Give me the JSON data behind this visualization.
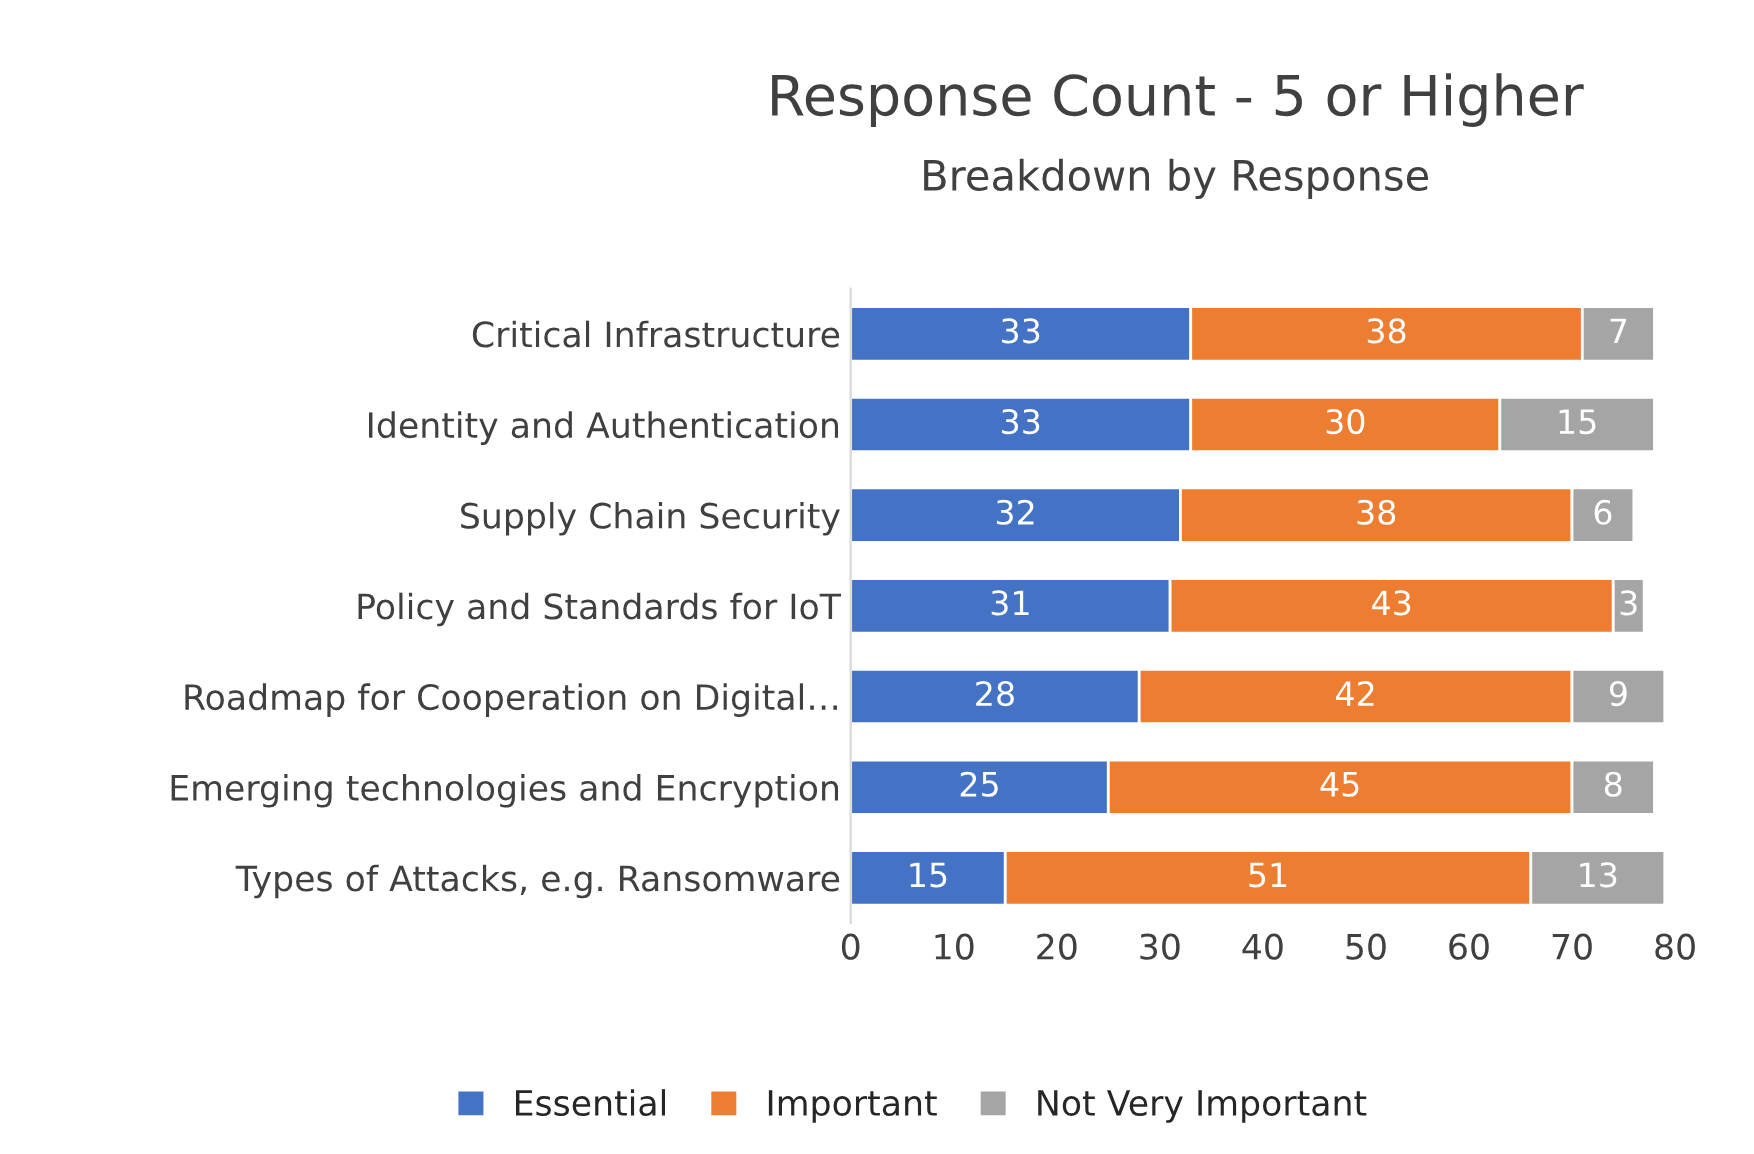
{
  "chart_data": {
    "type": "bar",
    "orientation": "horizontal",
    "stacked": true,
    "title": "Response Count - 5 or Higher",
    "subtitle": "Breakdown by Response",
    "categories": [
      "Critical Infrastructure",
      "Identity and Authentication",
      "Supply Chain Security",
      "Policy and Standards for IoT",
      "Roadmap for Cooperation on Digital…",
      "Emerging technologies and Encryption",
      "Types of Attacks, e.g. Ransomware"
    ],
    "series": [
      {
        "name": "Essential",
        "color": "#4472c4",
        "values": [
          33,
          33,
          32,
          31,
          28,
          25,
          15
        ]
      },
      {
        "name": "Important",
        "color": "#ed7d31",
        "values": [
          38,
          30,
          38,
          43,
          42,
          45,
          51
        ]
      },
      {
        "name": "Not Very Important",
        "color": "#a5a5a5",
        "values": [
          7,
          15,
          6,
          3,
          9,
          8,
          13
        ]
      }
    ],
    "xlim": [
      0,
      80
    ],
    "xticks": [
      0,
      10,
      20,
      30,
      40,
      50,
      60,
      70,
      80
    ],
    "data_labels": true,
    "legend": "bottom",
    "grid": false
  }
}
